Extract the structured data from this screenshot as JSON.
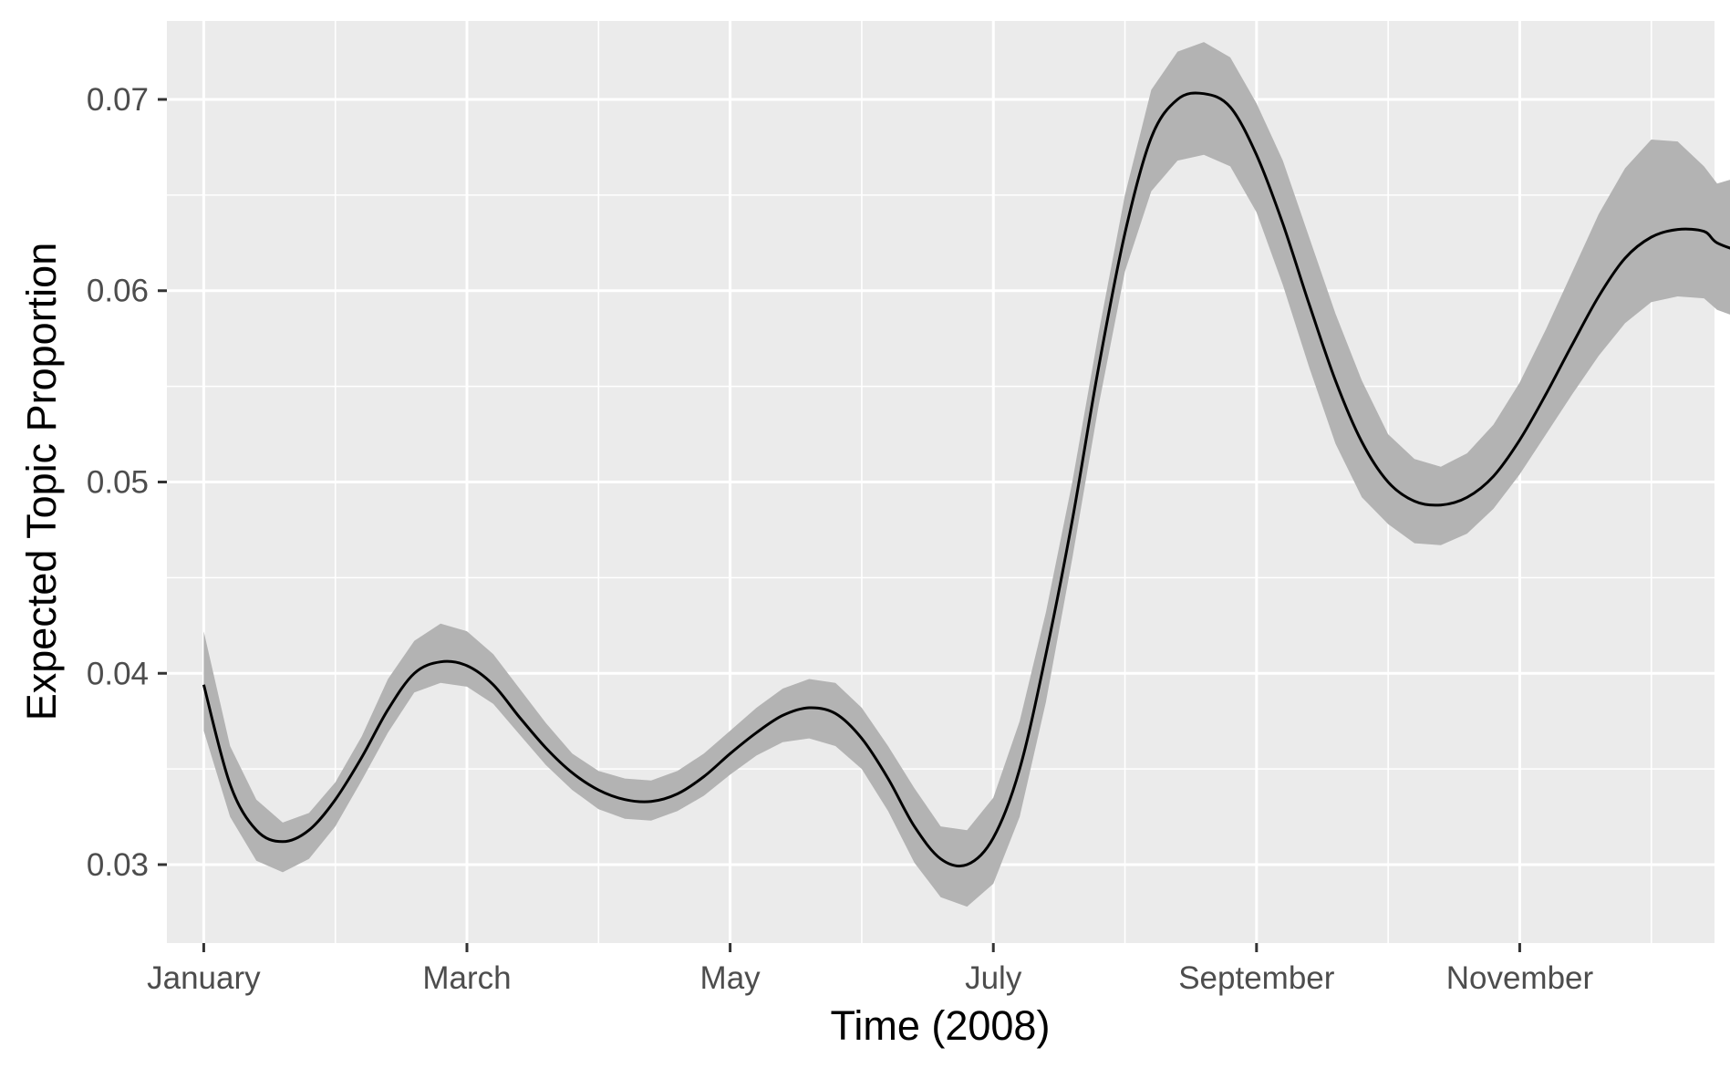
{
  "chart_data": {
    "type": "line",
    "xlabel": "Time (2008)",
    "ylabel": "Expected Topic Proportion",
    "x_axis": {
      "kind": "month-of-2008",
      "range": [
        0.72,
        12.48
      ],
      "major_ticks": [
        1,
        3,
        5,
        7,
        9,
        11
      ],
      "tick_labels": [
        "January",
        "March",
        "May",
        "July",
        "September",
        "November"
      ],
      "minor_ticks": [
        2,
        4,
        6,
        8,
        10,
        12,
        13
      ]
    },
    "y_axis": {
      "range": [
        0.0259,
        0.0741
      ],
      "major_ticks": [
        0.03,
        0.04,
        0.05,
        0.06,
        0.07
      ],
      "tick_labels": [
        "0.03",
        "0.04",
        "0.05",
        "0.06",
        "0.07"
      ],
      "minor_ticks": [
        0.035,
        0.045,
        0.055,
        0.065
      ]
    },
    "grid": true,
    "colors": {
      "panel_background": "#ebebeb",
      "grid_line": "#ffffff",
      "line": "#000000",
      "ribbon": "#b3b3b3",
      "tick_text": "#4d4d4d"
    },
    "series": [
      {
        "x": [
          1.0,
          1.2,
          1.4,
          1.6,
          1.8,
          2.0,
          2.2,
          2.4,
          2.6,
          2.8,
          3.0,
          3.2,
          3.4,
          3.6,
          3.8,
          4.0,
          4.2,
          4.4,
          4.6,
          4.8,
          5.0,
          5.2,
          5.4,
          5.6,
          5.8,
          6.0,
          6.2,
          6.4,
          6.6,
          6.8,
          7.0,
          7.2,
          7.4,
          7.6,
          7.8,
          8.0,
          8.2,
          8.4,
          8.6,
          8.8,
          9.0,
          9.2,
          9.4,
          9.6,
          9.8,
          10.0,
          10.2,
          10.4,
          10.6,
          10.8,
          11.0,
          11.2,
          11.4,
          11.6,
          11.8,
          12.0,
          12.2,
          12.4,
          12.5,
          12.7,
          12.9,
          13.0
        ],
        "y": [
          0.0394,
          0.0342,
          0.0318,
          0.0312,
          0.0318,
          0.0334,
          0.0356,
          0.0381,
          0.04,
          0.0406,
          0.0404,
          0.0394,
          0.0377,
          0.0361,
          0.0348,
          0.0339,
          0.0334,
          0.0333,
          0.0337,
          0.0346,
          0.0358,
          0.0369,
          0.0378,
          0.0382,
          0.0379,
          0.0366,
          0.0345,
          0.032,
          0.0303,
          0.03,
          0.0314,
          0.035,
          0.041,
          0.048,
          0.056,
          0.063,
          0.068,
          0.07,
          0.0703,
          0.0696,
          0.0671,
          0.0635,
          0.0593,
          0.0553,
          0.0521,
          0.05,
          0.049,
          0.0488,
          0.0492,
          0.0503,
          0.0522,
          0.0546,
          0.0572,
          0.0597,
          0.0617,
          0.0628,
          0.0632,
          0.0631,
          0.0625,
          0.062,
          0.0616,
          0.0625
        ],
        "lower": [
          0.037,
          0.0325,
          0.0302,
          0.0296,
          0.0303,
          0.032,
          0.0344,
          0.0369,
          0.039,
          0.0395,
          0.0393,
          0.0384,
          0.0368,
          0.0352,
          0.0339,
          0.0329,
          0.0324,
          0.0323,
          0.0328,
          0.0336,
          0.0347,
          0.0357,
          0.0364,
          0.0366,
          0.0362,
          0.035,
          0.0328,
          0.0301,
          0.0283,
          0.0278,
          0.029,
          0.0325,
          0.0385,
          0.046,
          0.054,
          0.061,
          0.0652,
          0.0668,
          0.0671,
          0.0665,
          0.0641,
          0.0603,
          0.056,
          0.052,
          0.0492,
          0.0478,
          0.0468,
          0.0467,
          0.0473,
          0.0486,
          0.0504,
          0.0525,
          0.0546,
          0.0566,
          0.0583,
          0.0594,
          0.0597,
          0.0596,
          0.059,
          0.0585,
          0.058,
          0.0588
        ],
        "upper": [
          0.0422,
          0.0362,
          0.0334,
          0.0322,
          0.0327,
          0.0343,
          0.0367,
          0.0397,
          0.0417,
          0.0426,
          0.0422,
          0.041,
          0.0392,
          0.0374,
          0.0358,
          0.0349,
          0.0345,
          0.0344,
          0.0349,
          0.0358,
          0.037,
          0.0382,
          0.0392,
          0.0397,
          0.0395,
          0.0382,
          0.0362,
          0.034,
          0.032,
          0.0318,
          0.0335,
          0.0375,
          0.0432,
          0.05,
          0.0578,
          0.065,
          0.0705,
          0.0725,
          0.073,
          0.0722,
          0.0698,
          0.0668,
          0.0628,
          0.0588,
          0.0553,
          0.0525,
          0.0512,
          0.0508,
          0.0515,
          0.053,
          0.0552,
          0.058,
          0.061,
          0.064,
          0.0664,
          0.0679,
          0.0678,
          0.0665,
          0.0656,
          0.066,
          0.0664,
          0.0669
        ]
      }
    ]
  }
}
